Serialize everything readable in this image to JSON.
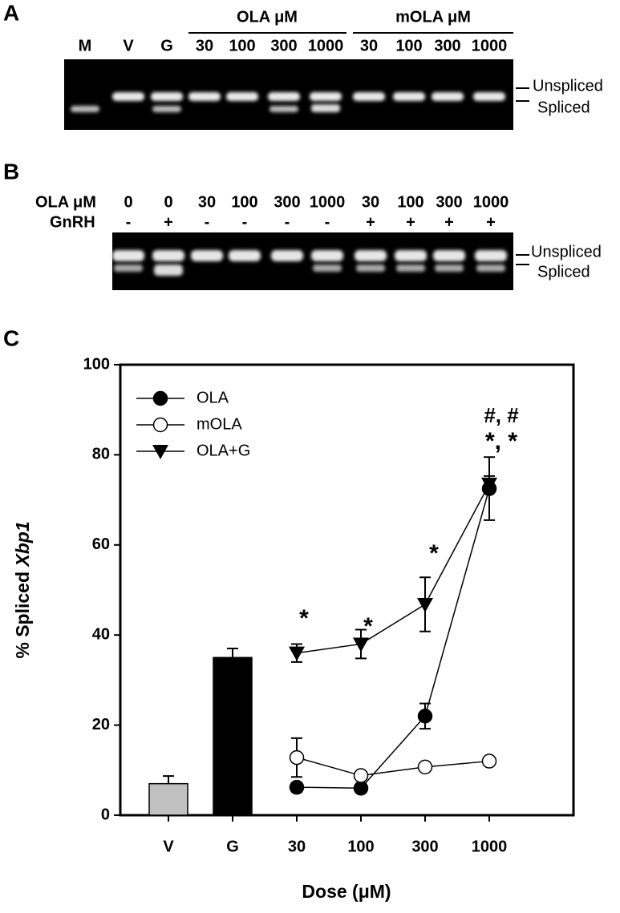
{
  "panel_a": {
    "label": "A",
    "lanes": [
      "M",
      "V",
      "G",
      "30",
      "100",
      "300",
      "1000",
      "30",
      "100",
      "300",
      "1000"
    ],
    "groups": [
      "OLA μM",
      "mOLA μM"
    ],
    "bands": [
      "Unspliced",
      "Spliced"
    ]
  },
  "panel_b": {
    "label": "B",
    "row_labels": [
      "OLA μM",
      "GnRH"
    ],
    "doses": [
      "0",
      "0",
      "30",
      "100",
      "300",
      "1000",
      "30",
      "100",
      "300",
      "1000"
    ],
    "gnrh": [
      "-",
      "+",
      "-",
      "-",
      "-",
      "-",
      "+",
      "+",
      "+",
      "+"
    ],
    "bands": [
      "Unspliced",
      "Spliced"
    ]
  },
  "panel_c": {
    "label": "C"
  },
  "chart_data": {
    "type": "combo",
    "ylabel": "% Spliced",
    "ylabel_gene": "Xbp1",
    "xlabel": "Dose (μM)",
    "categories": [
      "V",
      "G",
      "30",
      "100",
      "300",
      "1000"
    ],
    "bar_values": [
      7,
      35,
      null,
      null,
      null,
      null
    ],
    "bar_errors": [
      1.7,
      2,
      null,
      null,
      null,
      null
    ],
    "bar_colors": [
      "#c0c0c0",
      "#000000",
      null,
      null,
      null,
      null
    ],
    "series": [
      {
        "name": "OLA",
        "marker": "filled-circle",
        "color": "#000000",
        "values": [
          null,
          null,
          6.2,
          6,
          22,
          72.5
        ],
        "errors": [
          null,
          null,
          1,
          1,
          2.8,
          7
        ]
      },
      {
        "name": "mOLA",
        "marker": "open-circle",
        "color": "#000000",
        "values": [
          null,
          null,
          12.8,
          8.8,
          10.7,
          12
        ],
        "errors": [
          null,
          null,
          4.3,
          0.6,
          0.5,
          0.6
        ]
      },
      {
        "name": "OLA+G",
        "marker": "filled-triangle-down",
        "color": "#000000",
        "values": [
          null,
          null,
          36,
          38,
          46.8,
          73.5
        ],
        "errors": [
          null,
          null,
          2,
          3.2,
          6,
          1.8
        ]
      }
    ],
    "annotations": [
      "*",
      "*",
      "*",
      "*, *",
      "#, #"
    ],
    "ylim": [
      0,
      100
    ],
    "yticks": [
      0,
      20,
      40,
      60,
      80,
      100
    ],
    "legend": "top-left"
  }
}
